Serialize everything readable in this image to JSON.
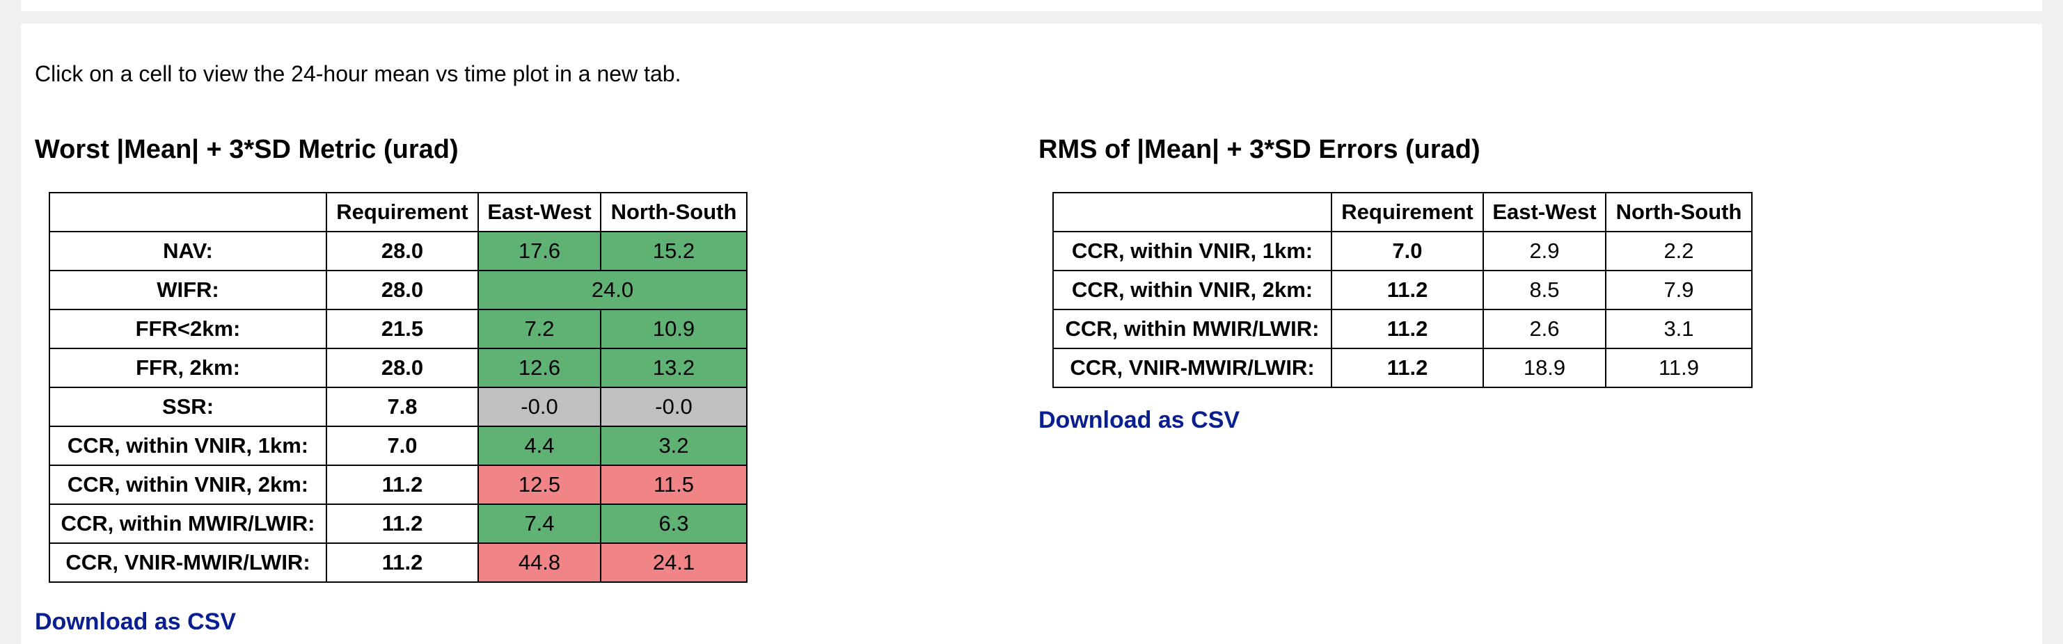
{
  "intro_text": "Click on a cell to view the 24-hour mean vs time plot in a new tab.",
  "colors": {
    "pass": "#5fb174",
    "fail": "#f08486",
    "neutral": "#c0c0c0",
    "link": "#0a1f8f"
  },
  "worst_table": {
    "title": "Worst |Mean| + 3*SD Metric (urad)",
    "headers": [
      "",
      "Requirement",
      "East-West",
      "North-South"
    ],
    "rows": [
      {
        "label": "NAV:",
        "requirement": "28.0",
        "ew": "17.6",
        "ns": "15.2",
        "ew_status": "pass",
        "ns_status": "pass"
      },
      {
        "label": "WIFR:",
        "requirement": "28.0",
        "combined": "24.0",
        "status": "pass"
      },
      {
        "label": "FFR<2km:",
        "requirement": "21.5",
        "ew": "7.2",
        "ns": "10.9",
        "ew_status": "pass",
        "ns_status": "pass"
      },
      {
        "label": "FFR, 2km:",
        "requirement": "28.0",
        "ew": "12.6",
        "ns": "13.2",
        "ew_status": "pass",
        "ns_status": "pass"
      },
      {
        "label": "SSR:",
        "requirement": "7.8",
        "ew": "-0.0",
        "ns": "-0.0",
        "ew_status": "neutral",
        "ns_status": "neutral"
      },
      {
        "label": "CCR, within VNIR, 1km:",
        "requirement": "7.0",
        "ew": "4.4",
        "ns": "3.2",
        "ew_status": "pass",
        "ns_status": "pass"
      },
      {
        "label": "CCR, within VNIR, 2km:",
        "requirement": "11.2",
        "ew": "12.5",
        "ns": "11.5",
        "ew_status": "fail",
        "ns_status": "fail"
      },
      {
        "label": "CCR, within MWIR/LWIR:",
        "requirement": "11.2",
        "ew": "7.4",
        "ns": "6.3",
        "ew_status": "pass",
        "ns_status": "pass"
      },
      {
        "label": "CCR, VNIR-MWIR/LWIR:",
        "requirement": "11.2",
        "ew": "44.8",
        "ns": "24.1",
        "ew_status": "fail",
        "ns_status": "fail"
      }
    ],
    "download_label": "Download as CSV"
  },
  "rms_table": {
    "title": "RMS of |Mean| + 3*SD Errors (urad)",
    "headers": [
      "",
      "Requirement",
      "East-West",
      "North-South"
    ],
    "rows": [
      {
        "label": "CCR, within VNIR, 1km:",
        "requirement": "7.0",
        "ew": "2.9",
        "ns": "2.2"
      },
      {
        "label": "CCR, within VNIR, 2km:",
        "requirement": "11.2",
        "ew": "8.5",
        "ns": "7.9"
      },
      {
        "label": "CCR, within MWIR/LWIR:",
        "requirement": "11.2",
        "ew": "2.6",
        "ns": "3.1"
      },
      {
        "label": "CCR, VNIR-MWIR/LWIR:",
        "requirement": "11.2",
        "ew": "18.9",
        "ns": "11.9"
      }
    ],
    "download_label": "Download as CSV"
  }
}
